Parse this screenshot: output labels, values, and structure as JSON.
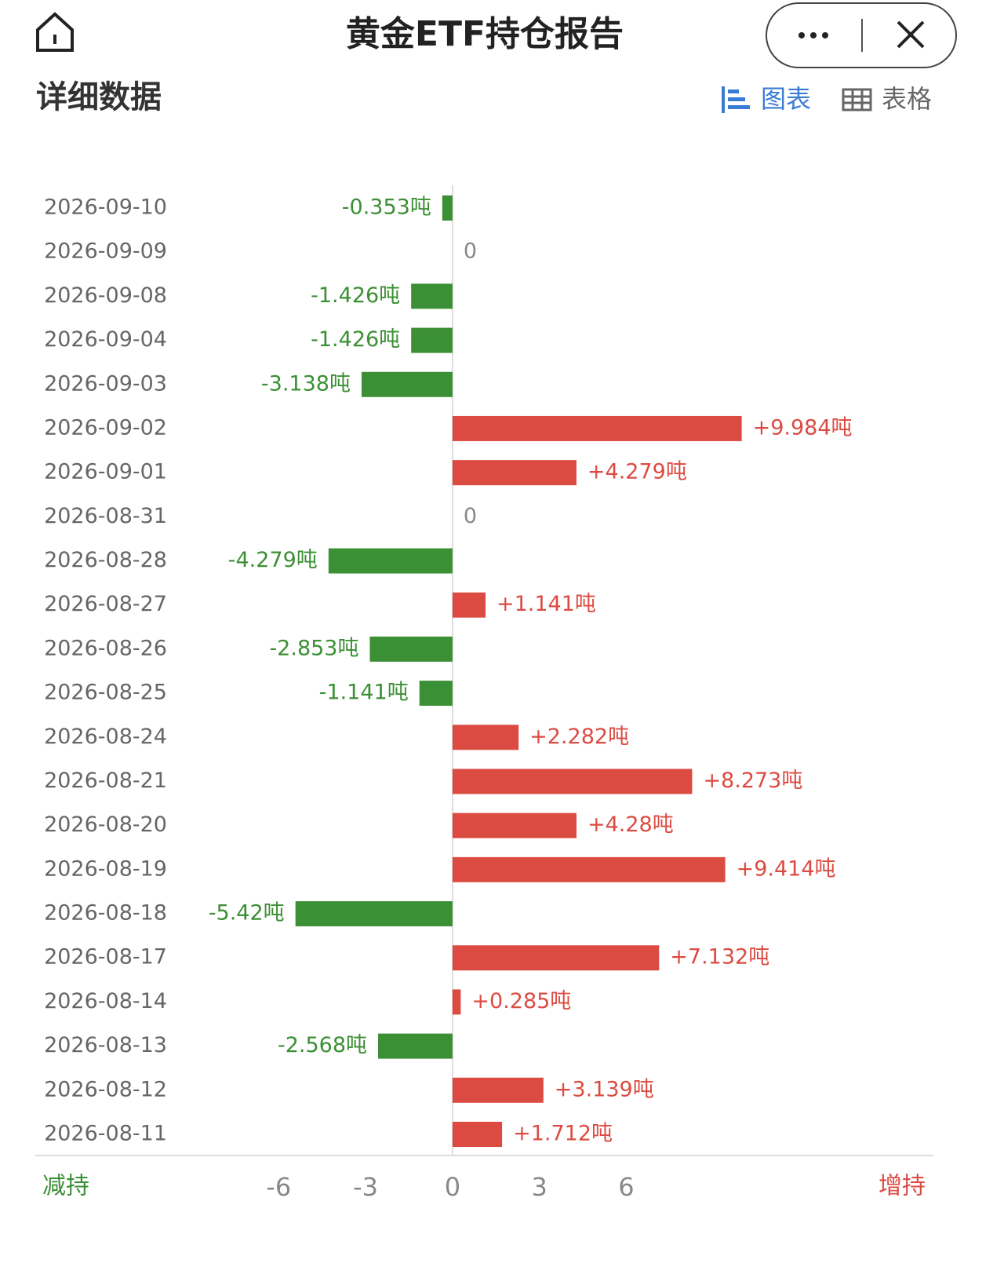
{
  "header": {
    "title": "黄金ETF持仓报告",
    "section": "详细数据",
    "tabs": [
      "图表",
      "表格"
    ]
  },
  "chart_data": {
    "type": "bar",
    "orientation": "horizontal",
    "categories": [
      "2026-09-10",
      "2026-09-09",
      "2026-09-08",
      "2026-09-04",
      "2026-09-03",
      "2026-09-02",
      "2026-09-01",
      "2026-08-31",
      "2026-08-28",
      "2026-08-27",
      "2026-08-26",
      "2026-08-25",
      "2026-08-24",
      "2026-08-21",
      "2026-08-20",
      "2026-08-19",
      "2026-08-18",
      "2026-08-17",
      "2026-08-14",
      "2026-08-13",
      "2026-08-12",
      "2026-08-11"
    ],
    "values": [
      -0.353,
      0,
      -1.426,
      -1.426,
      -3.138,
      9.984,
      4.279,
      0,
      -4.279,
      1.141,
      -2.853,
      -1.141,
      2.282,
      8.273,
      4.28,
      9.414,
      -5.42,
      7.132,
      0.285,
      -2.568,
      3.139,
      1.712
    ],
    "value_labels": [
      "-0.353吨",
      "0",
      "-1.426吨",
      "-1.426吨",
      "-3.138吨",
      "+9.984吨",
      "+4.279吨",
      "0",
      "-4.279吨",
      "+1.141吨",
      "-2.853吨",
      "-1.141吨",
      "+2.282吨",
      "+8.273吨",
      "+4.28吨",
      "+9.414吨",
      "-5.42吨",
      "+7.132吨",
      "+0.285吨",
      "-2.568吨",
      "+3.139吨",
      "+1.712吨"
    ],
    "xlim": [
      -14.4,
      16.6
    ],
    "xticks": [
      -6,
      -3,
      0,
      3,
      6
    ],
    "negative_label": "减持",
    "positive_label": "增持",
    "negative_color": "#3b8f34",
    "positive_color": "#dc4b42"
  }
}
